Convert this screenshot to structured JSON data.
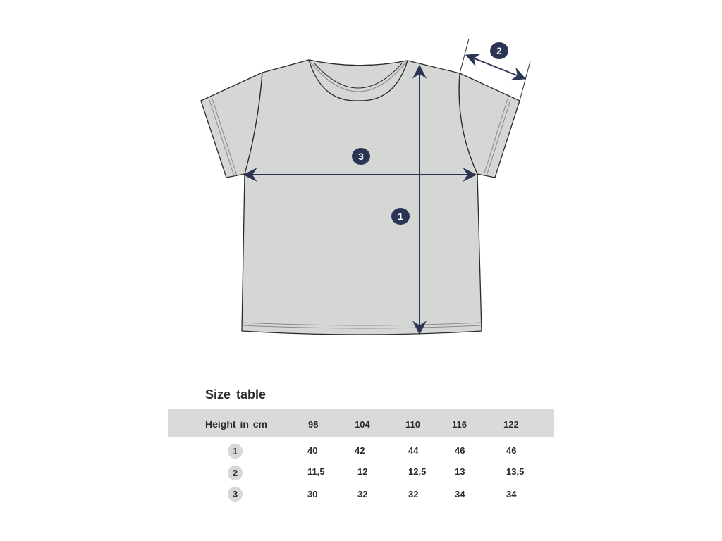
{
  "diagram": {
    "markers": [
      "1",
      "2",
      "3"
    ],
    "colors": {
      "garment": "#d5d7d4",
      "arrow": "#2b3553",
      "outline": "#2a2a2a"
    }
  },
  "table": {
    "title": "Size table",
    "header_label": "Height in cm",
    "sizes": [
      "98",
      "104",
      "110",
      "116",
      "122"
    ],
    "rows": [
      {
        "marker": "1",
        "values": [
          "40",
          "42",
          "44",
          "46",
          "46"
        ]
      },
      {
        "marker": "2",
        "values": [
          "11,5",
          "12",
          "12,5",
          "13",
          "13,5"
        ]
      },
      {
        "marker": "3",
        "values": [
          "30",
          "32",
          "32",
          "34",
          "34"
        ]
      }
    ]
  }
}
